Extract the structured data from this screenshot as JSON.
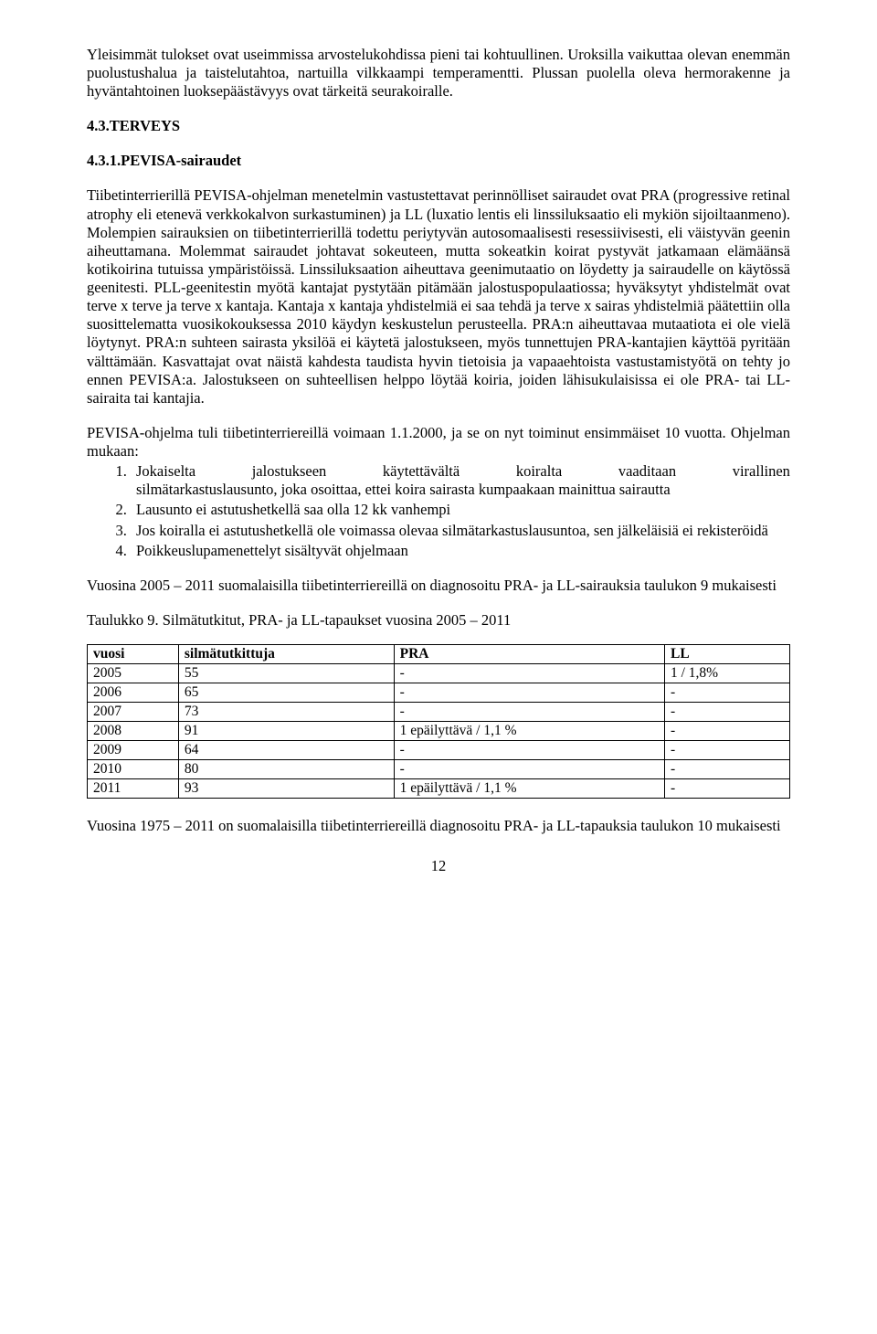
{
  "para1": "Yleisimmät tulokset ovat useimmissa arvostelukohdissa pieni tai kohtuullinen. Uroksilla vaikuttaa olevan enemmän puolustushalua ja taistelutahtoa, nartuilla vilkkaampi temperamentti. Plussan puolella oleva hermorakenne ja hyväntahtoinen luoksepäästävyys ovat tärkeitä seurakoiralle.",
  "heading1": "4.3.TERVEYS",
  "heading2": "4.3.1.PEVISA-sairaudet",
  "para2": "Tiibetinterrierillä PEVISA-ohjelman menetelmin vastustettavat perinnölliset sairaudet ovat PRA (progressive retinal atrophy eli etenevä verkkokalvon surkastuminen) ja LL (luxatio lentis eli linssiluksaatio eli mykiön sijoiltaanmeno). Molempien sairauksien on tiibetinterrierillä todettu periytyvän autosomaalisesti resessiivisesti, eli väistyvän geenin aiheuttamana. Molemmat sairaudet johtavat sokeuteen, mutta sokeatkin koirat pystyvät jatkamaan elämäänsä kotikoirina tutuissa ympäristöissä. Linssiluksaation aiheuttava geenimutaatio on löydetty ja sairaudelle on käytössä geenitesti. PLL-geenitestin myötä kantajat pystytään pitämään jalostuspopulaatiossa; hyväksytyt yhdistelmät ovat terve x terve ja terve x kantaja. Kantaja x kantaja yhdistelmiä ei saa tehdä ja terve x sairas yhdistelmiä päätettiin olla suosittelematta vuosikokouksessa 2010 käydyn keskustelun perusteella. PRA:n aiheuttavaa mutaatiota ei ole vielä löytynyt. PRA:n suhteen sairasta yksilöä ei käytetä jalostukseen, myös tunnettujen PRA-kantajien käyttöä pyritään välttämään. Kasvattajat ovat näistä kahdesta taudista hyvin tietoisia ja vapaaehtoista vastustamistyötä on tehty jo ennen PEVISA:a.  Jalostukseen on suhteellisen helppo löytää koiria, joiden lähisukulaisissa ei ole PRA- tai LL- sairaita tai kantajia.",
  "para3": "PEVISA-ohjelma tuli tiibetinterriereillä voimaan 1.1.2000, ja se on nyt toiminut ensimmäiset 10 vuotta. Ohjelman mukaan:",
  "list1": {
    "item1_words": [
      "Jokaiselta",
      "jalostukseen",
      "käytettävältä",
      "koiralta",
      "vaaditaan",
      "virallinen"
    ],
    "item1_rest": "silmätarkastuslausunto, joka osoittaa, ettei koira sairasta kumpaakaan mainittua sairautta",
    "item2": "Lausunto ei astutushetkellä saa olla 12 kk vanhempi",
    "item3": "Jos koiralla ei astutushetkellä ole voimassa olevaa silmätarkastuslausuntoa, sen jälkeläisiä ei rekisteröidä",
    "item4": "Poikkeuslupamenettelyt sisältyvät ohjelmaan"
  },
  "para4": "Vuosina 2005 – 2011 suomalaisilla tiibetinterriereillä on diagnosoitu PRA- ja LL-sairauksia taulukon 9 mukaisesti",
  "caption1": "Taulukko 9. Silmätutkitut, PRA- ja LL-tapaukset vuosina 2005 – 2011",
  "table": {
    "headers": [
      "vuosi",
      "silmätutkittuja",
      "PRA",
      "LL"
    ],
    "rows": [
      [
        "2005",
        "55",
        "-",
        "1      /    1,8%"
      ],
      [
        "2006",
        "65",
        "-",
        "-"
      ],
      [
        "2007",
        "73",
        "-",
        "-"
      ],
      [
        "2008",
        "91",
        "1 epäilyttävä /      1,1 %",
        "-"
      ],
      [
        "2009",
        "64",
        "-",
        "-"
      ],
      [
        "2010",
        "80",
        "-",
        "-"
      ],
      [
        "2011",
        "93",
        "1 epäilyttävä /      1,1 %",
        "-"
      ]
    ]
  },
  "para5": "Vuosina 1975 – 2011 on suomalaisilla tiibetinterriereillä diagnosoitu PRA- ja LL-tapauksia taulukon 10 mukaisesti",
  "pageNum": "12"
}
